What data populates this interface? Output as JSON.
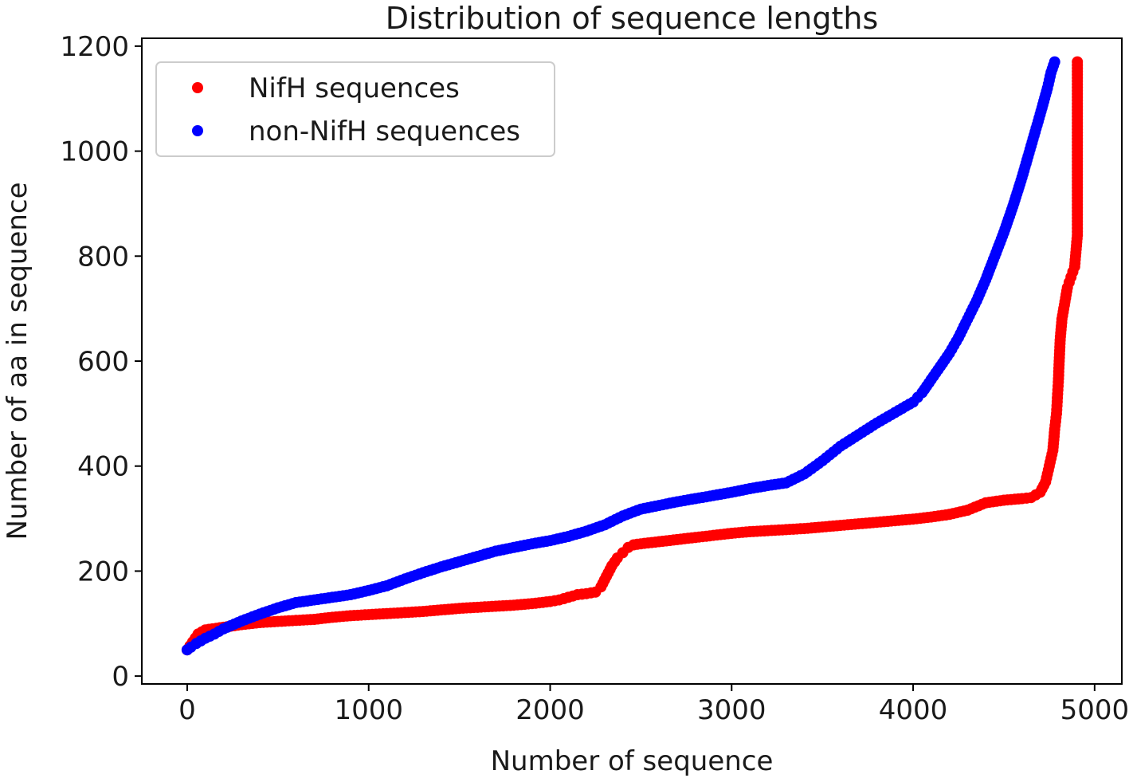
{
  "chart_data": {
    "type": "scatter",
    "title": "Distribution of sequence lengths",
    "xlabel": "Number of sequence",
    "ylabel": "Number of aa in sequence",
    "xlim": [
      -250,
      5150
    ],
    "ylim": [
      -15,
      1215
    ],
    "xticks": [
      0,
      1000,
      2000,
      3000,
      4000,
      5000
    ],
    "yticks": [
      0,
      200,
      400,
      600,
      800,
      1000,
      1200
    ],
    "grid": false,
    "legend_position": "top-left",
    "series": [
      {
        "name": "NifH sequences",
        "color": "#ff0000",
        "points": [
          [
            0,
            50
          ],
          [
            30,
            65
          ],
          [
            60,
            80
          ],
          [
            100,
            88
          ],
          [
            200,
            93
          ],
          [
            300,
            98
          ],
          [
            400,
            102
          ],
          [
            500,
            104
          ],
          [
            600,
            106
          ],
          [
            700,
            108
          ],
          [
            800,
            112
          ],
          [
            900,
            115
          ],
          [
            1000,
            117
          ],
          [
            1100,
            119
          ],
          [
            1200,
            121
          ],
          [
            1300,
            123
          ],
          [
            1400,
            126
          ],
          [
            1500,
            129
          ],
          [
            1600,
            131
          ],
          [
            1700,
            133
          ],
          [
            1800,
            135
          ],
          [
            1900,
            138
          ],
          [
            2000,
            142
          ],
          [
            2050,
            145
          ],
          [
            2100,
            150
          ],
          [
            2150,
            155
          ],
          [
            2200,
            157
          ],
          [
            2250,
            160
          ],
          [
            2280,
            170
          ],
          [
            2310,
            190
          ],
          [
            2340,
            210
          ],
          [
            2370,
            225
          ],
          [
            2400,
            235
          ],
          [
            2430,
            245
          ],
          [
            2460,
            250
          ],
          [
            2500,
            252
          ],
          [
            2600,
            256
          ],
          [
            2700,
            260
          ],
          [
            2800,
            264
          ],
          [
            2900,
            268
          ],
          [
            3000,
            272
          ],
          [
            3100,
            275
          ],
          [
            3200,
            277
          ],
          [
            3300,
            279
          ],
          [
            3400,
            281
          ],
          [
            3500,
            284
          ],
          [
            3600,
            287
          ],
          [
            3700,
            290
          ],
          [
            3800,
            293
          ],
          [
            3900,
            296
          ],
          [
            4000,
            299
          ],
          [
            4100,
            303
          ],
          [
            4200,
            308
          ],
          [
            4300,
            316
          ],
          [
            4400,
            330
          ],
          [
            4500,
            335
          ],
          [
            4600,
            338
          ],
          [
            4650,
            340
          ],
          [
            4700,
            350
          ],
          [
            4730,
            370
          ],
          [
            4750,
            400
          ],
          [
            4770,
            430
          ],
          [
            4780,
            470
          ],
          [
            4790,
            500
          ],
          [
            4795,
            530
          ],
          [
            4800,
            560
          ],
          [
            4805,
            600
          ],
          [
            4810,
            640
          ],
          [
            4820,
            680
          ],
          [
            4830,
            700
          ],
          [
            4840,
            720
          ],
          [
            4850,
            740
          ],
          [
            4860,
            750
          ],
          [
            4870,
            760
          ],
          [
            4880,
            770
          ],
          [
            4890,
            780
          ],
          [
            4895,
            800
          ],
          [
            4900,
            820
          ],
          [
            4905,
            840
          ],
          [
            4905,
            860
          ],
          [
            4905,
            930
          ],
          [
            4905,
            1005
          ],
          [
            4905,
            1170
          ]
        ]
      },
      {
        "name": "non-NifH sequences",
        "color": "#0000ff",
        "points": [
          [
            0,
            50
          ],
          [
            20,
            55
          ],
          [
            50,
            62
          ],
          [
            100,
            72
          ],
          [
            150,
            80
          ],
          [
            200,
            90
          ],
          [
            300,
            105
          ],
          [
            400,
            118
          ],
          [
            500,
            130
          ],
          [
            600,
            140
          ],
          [
            700,
            145
          ],
          [
            800,
            150
          ],
          [
            900,
            155
          ],
          [
            1000,
            163
          ],
          [
            1100,
            172
          ],
          [
            1200,
            185
          ],
          [
            1300,
            197
          ],
          [
            1400,
            208
          ],
          [
            1500,
            218
          ],
          [
            1600,
            228
          ],
          [
            1700,
            238
          ],
          [
            1800,
            245
          ],
          [
            1900,
            252
          ],
          [
            2000,
            258
          ],
          [
            2100,
            266
          ],
          [
            2200,
            276
          ],
          [
            2300,
            288
          ],
          [
            2400,
            305
          ],
          [
            2500,
            318
          ],
          [
            2600,
            325
          ],
          [
            2700,
            332
          ],
          [
            2800,
            338
          ],
          [
            2900,
            344
          ],
          [
            3000,
            350
          ],
          [
            3100,
            357
          ],
          [
            3200,
            363
          ],
          [
            3300,
            368
          ],
          [
            3400,
            385
          ],
          [
            3500,
            410
          ],
          [
            3600,
            438
          ],
          [
            3700,
            460
          ],
          [
            3800,
            482
          ],
          [
            3900,
            502
          ],
          [
            4000,
            522
          ],
          [
            4050,
            540
          ],
          [
            4100,
            565
          ],
          [
            4150,
            590
          ],
          [
            4200,
            615
          ],
          [
            4250,
            645
          ],
          [
            4300,
            680
          ],
          [
            4350,
            715
          ],
          [
            4400,
            755
          ],
          [
            4450,
            800
          ],
          [
            4500,
            845
          ],
          [
            4550,
            895
          ],
          [
            4600,
            950
          ],
          [
            4650,
            1010
          ],
          [
            4700,
            1070
          ],
          [
            4740,
            1120
          ],
          [
            4760,
            1150
          ],
          [
            4780,
            1170
          ]
        ]
      }
    ]
  }
}
